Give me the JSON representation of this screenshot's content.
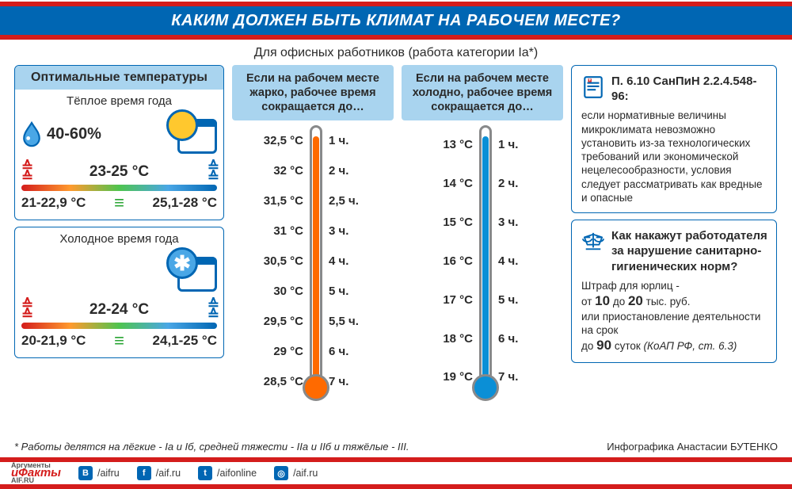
{
  "header": {
    "title": "КАКИМ ДОЛЖЕН БЫТЬ КЛИМАТ НА РАБОЧЕМ МЕСТЕ?",
    "title_bg": "#0066b3",
    "accent_color": "#d41d1c"
  },
  "subtitle": "Для офисных работников (работа категории Iа*)",
  "optimal": {
    "card_title": "Оптимальные температуры",
    "humidity_label": "40-60%",
    "warm": {
      "season": "Тёплое время года",
      "center": "23-25 °C",
      "low": "21-22,9 °C",
      "high": "25,1-28 °C"
    },
    "cold": {
      "season": "Холодное время года",
      "center": "22-24 °C",
      "low": "20-21,9 °C",
      "high": "24,1-25 °C"
    },
    "gradient_colors": [
      "#d41d1c",
      "#ff9a2e",
      "#4fc44f",
      "#4aa7e6",
      "#0066b3"
    ]
  },
  "hot": {
    "heading": "Если на рабочем месте жарко, рабочее время сокращается до…",
    "fill_color": "#ff6a00",
    "bulb_color": "#ff6a00",
    "fill_height_pct": 92,
    "rows": [
      {
        "temp": "32,5 °C",
        "hours": "1 ч."
      },
      {
        "temp": "32 °C",
        "hours": "2 ч."
      },
      {
        "temp": "31,5 °C",
        "hours": "2,5 ч."
      },
      {
        "temp": "31 °C",
        "hours": "3 ч."
      },
      {
        "temp": "30,5 °C",
        "hours": "4 ч."
      },
      {
        "temp": "30 °C",
        "hours": "5 ч."
      },
      {
        "temp": "29,5 °C",
        "hours": "5,5 ч."
      },
      {
        "temp": "29 °C",
        "hours": "6 ч."
      },
      {
        "temp": "28,5 °C",
        "hours": "7 ч."
      }
    ]
  },
  "cold": {
    "heading": "Если на рабочем месте холодно, рабочее время сокращается до…",
    "fill_color": "#0b8fd6",
    "bulb_color": "#0b8fd6",
    "fill_height_pct": 92,
    "rows": [
      {
        "temp": "13 °C",
        "hours": "1 ч."
      },
      {
        "temp": "14 °C",
        "hours": "2 ч."
      },
      {
        "temp": "15 °C",
        "hours": "3 ч."
      },
      {
        "temp": "16 °C",
        "hours": "4 ч."
      },
      {
        "temp": "17 °C",
        "hours": "5 ч."
      },
      {
        "temp": "18 °C",
        "hours": "6 ч."
      },
      {
        "temp": "19 °C",
        "hours": "7 ч."
      }
    ]
  },
  "sanpin": {
    "ref": "П. 6.10 СанПиН 2.2.4.548-96:",
    "text": "если нормативные величины микроклимата невозможно установить из-за технологических требований или экономической нецелесообразности, условия следует рассматривать как вредные и опасные"
  },
  "penalty": {
    "q": "Как накажут работодателя за нарушение санитарно-гигиенических норм?",
    "line1a": "Штраф для юрлиц -",
    "line1b_pre": "от ",
    "line1b_v1": "10",
    "line1b_mid": " до ",
    "line1b_v2": "20",
    "line1b_post": " тыс. руб.",
    "line2": "или приостановление деятельности на срок",
    "line3_pre": "до ",
    "line3_v": "90",
    "line3_post": " суток ",
    "line3_ref": "(КоАП РФ, ст. 6.3)"
  },
  "footnote": "* Работы делятся на лёгкие - Iа и Iб, средней тяжести - IIа и IIб и тяжёлые - III.",
  "credit": "Инфографика Анастасии БУТЕНКО",
  "footer": {
    "brand_top": "Аргументы",
    "brand_bottom": "иФакты",
    "brand_sub": "AIF.RU",
    "vk": "/aifru",
    "fb": "/aif.ru",
    "tw": "/aifonline",
    "ig": "/aif.ru"
  },
  "colors": {
    "card_border": "#0066b3",
    "head_blue": "#a9d4ef",
    "text": "#2a2a2a"
  }
}
